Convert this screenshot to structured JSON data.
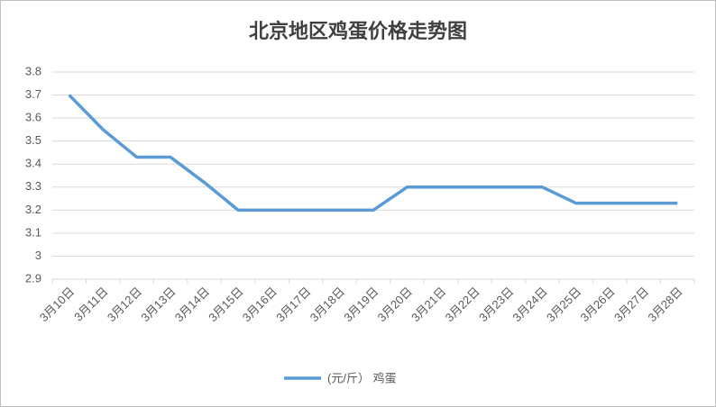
{
  "chart_data": {
    "type": "line",
    "title": "北京地区鸡蛋价格走势图",
    "categories": [
      "3月10日",
      "3月11日",
      "3月12日",
      "3月13日",
      "3月14日",
      "3月15日",
      "3月16日",
      "3月17日",
      "3月18日",
      "3月19日",
      "3月20日",
      "3月21日",
      "3月22日",
      "3月23日",
      "3月24日",
      "3月25日",
      "3月26日",
      "3月27日",
      "3月28日"
    ],
    "series": [
      {
        "name": "(元/斤） 鸡蛋",
        "color": "#5b9bd5",
        "values": [
          3.7,
          3.55,
          3.43,
          3.43,
          3.32,
          3.2,
          3.2,
          3.2,
          3.2,
          3.2,
          3.3,
          3.3,
          3.3,
          3.3,
          3.3,
          3.23,
          3.23,
          3.23,
          3.23
        ]
      }
    ],
    "ylim": [
      2.9,
      3.8
    ],
    "yticks": [
      2.9,
      3,
      3.1,
      3.2,
      3.3,
      3.4,
      3.5,
      3.6,
      3.7,
      3.8
    ],
    "grid": true,
    "legend": "bottom"
  }
}
